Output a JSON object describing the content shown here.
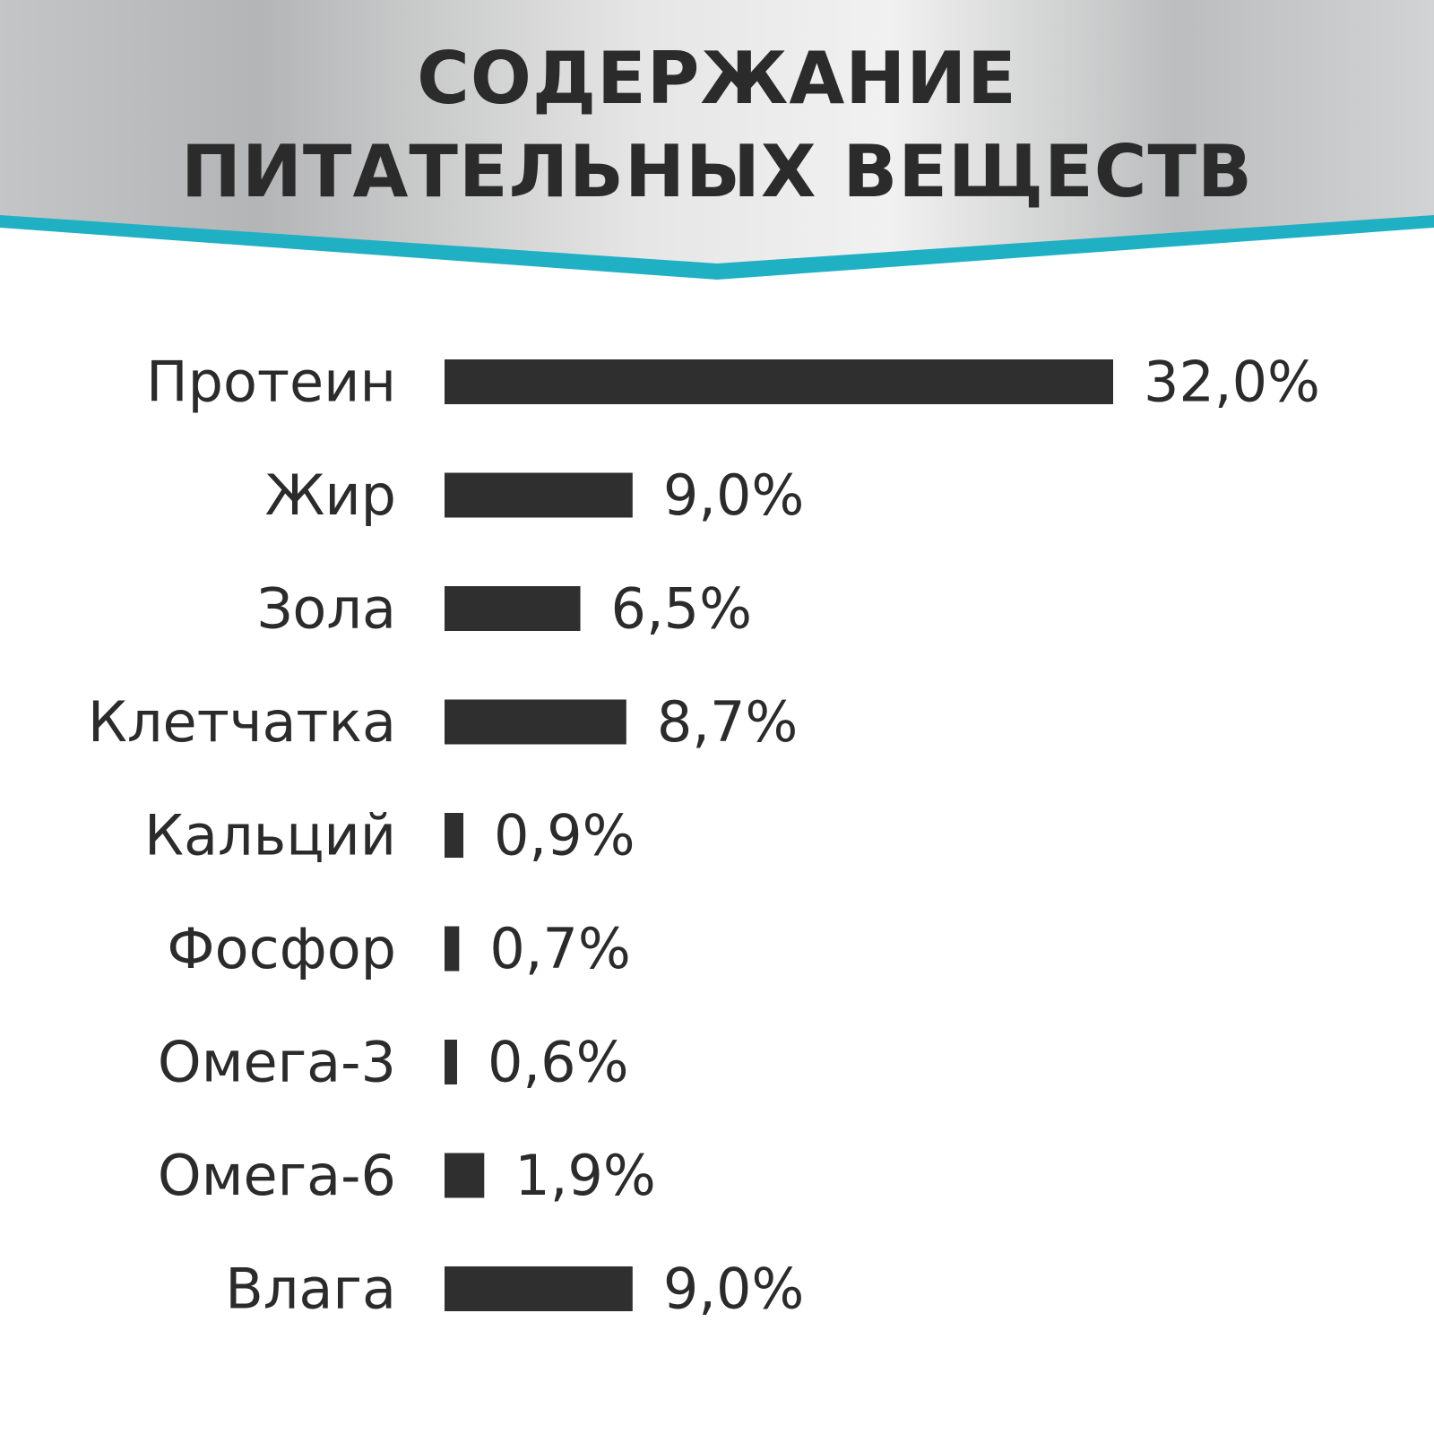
{
  "title_lines": [
    "СОДЕРЖАНИЕ",
    "ПИТАТЕЛЬНЫХ ВЕЩЕСТВ"
  ],
  "colors": {
    "accent": "#1fb0c4",
    "bar": "#2f2f2f",
    "text": "#2b2b2b",
    "header_light": "#f2f2f2",
    "header_dark": "#b9babb"
  },
  "chart_data": {
    "type": "bar",
    "orientation": "horizontal",
    "title": "СОДЕРЖАНИЕ ПИТАТЕЛЬНЫХ ВЕЩЕСТВ",
    "unit": "%",
    "categories": [
      "Протеин",
      "Жир",
      "Зола",
      "Клетчатка",
      "Кальций",
      "Фосфор",
      "Омега-3",
      "Омега-6",
      "Влага"
    ],
    "values": [
      32.0,
      9.0,
      6.5,
      8.7,
      0.9,
      0.7,
      0.6,
      1.9,
      9.0
    ],
    "value_labels": [
      "32,0%",
      "9,0%",
      "6,5%",
      "8,7%",
      "0,9%",
      "0,7%",
      "0,6%",
      "1,9%",
      "9,0%"
    ],
    "grid": false,
    "legend": "none"
  }
}
